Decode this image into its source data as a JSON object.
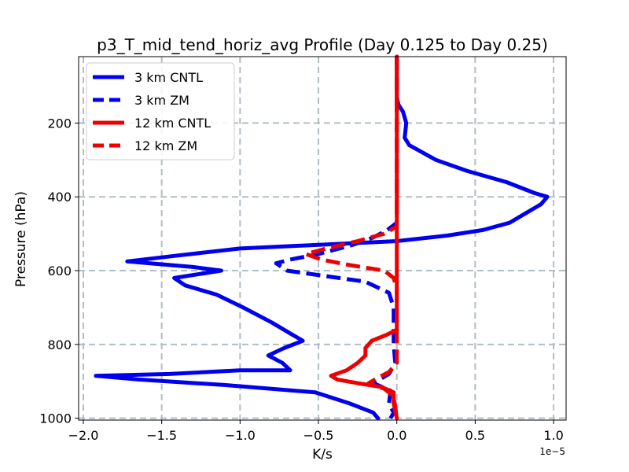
{
  "chart_data": {
    "type": "line",
    "title": "p3_T_mid_tend_horiz_avg Profile (Day 0.125 to Day 0.25)",
    "xlabel": "K/s",
    "ylabel": "Pressure (hPa)",
    "x_scale_label": "1e−5",
    "x_scale_factor": 1e-05,
    "xlim": [
      -2.03,
      1.08
    ],
    "ylim": [
      1005,
      20
    ],
    "y_inverted": true,
    "grid": true,
    "legend_position": "upper left",
    "x_ticks": [
      -2.0,
      -1.5,
      -1.0,
      -0.5,
      0.0,
      0.5,
      1.0
    ],
    "x_tick_labels": [
      "−2.0",
      "−1.5",
      "−1.0",
      "−0.5",
      "0.0",
      "0.5",
      "1.0"
    ],
    "y_ticks": [
      200,
      400,
      600,
      800,
      1000
    ],
    "y_tick_labels": [
      "200",
      "400",
      "600",
      "800",
      "1000"
    ],
    "series": [
      {
        "name": "3 km CNTL",
        "color": "#0000ee",
        "linestyle": "solid",
        "points": [
          [
            0.0,
            20
          ],
          [
            0.0,
            100
          ],
          [
            0.0,
            130
          ],
          [
            0.01,
            150
          ],
          [
            0.04,
            170
          ],
          [
            0.06,
            200
          ],
          [
            0.05,
            240
          ],
          [
            0.08,
            260
          ],
          [
            0.25,
            300
          ],
          [
            0.45,
            330
          ],
          [
            0.7,
            360
          ],
          [
            0.88,
            390
          ],
          [
            0.96,
            400
          ],
          [
            0.92,
            420
          ],
          [
            0.82,
            445
          ],
          [
            0.72,
            470
          ],
          [
            0.55,
            490
          ],
          [
            0.32,
            505
          ],
          [
            0.0,
            520
          ],
          [
            -0.5,
            530
          ],
          [
            -1.0,
            540
          ],
          [
            -1.42,
            560
          ],
          [
            -1.72,
            575
          ],
          [
            -1.3,
            590
          ],
          [
            -1.12,
            600
          ],
          [
            -1.42,
            620
          ],
          [
            -1.35,
            640
          ],
          [
            -1.15,
            665
          ],
          [
            -0.98,
            700
          ],
          [
            -0.8,
            740
          ],
          [
            -0.68,
            770
          ],
          [
            -0.6,
            790
          ],
          [
            -0.72,
            810
          ],
          [
            -0.82,
            830
          ],
          [
            -0.73,
            850
          ],
          [
            -0.68,
            870
          ],
          [
            -1.0,
            870
          ],
          [
            -1.45,
            880
          ],
          [
            -1.92,
            885
          ],
          [
            -1.65,
            895
          ],
          [
            -1.1,
            910
          ],
          [
            -0.52,
            930
          ],
          [
            -0.3,
            960
          ],
          [
            -0.15,
            985
          ],
          [
            -0.12,
            1000
          ]
        ]
      },
      {
        "name": "3 km ZM",
        "color": "#0000ee",
        "linestyle": "dashed",
        "points": [
          [
            0.0,
            20
          ],
          [
            0.0,
            470
          ],
          [
            -0.06,
            490
          ],
          [
            -0.15,
            510
          ],
          [
            -0.28,
            530
          ],
          [
            -0.5,
            555
          ],
          [
            -0.68,
            570
          ],
          [
            -0.77,
            580
          ],
          [
            -0.7,
            600
          ],
          [
            -0.45,
            615
          ],
          [
            -0.2,
            630
          ],
          [
            -0.05,
            660
          ],
          [
            -0.02,
            700
          ],
          [
            -0.02,
            800
          ],
          [
            -0.01,
            850
          ],
          [
            -0.05,
            880
          ],
          [
            -0.15,
            905
          ],
          [
            -0.04,
            925
          ],
          [
            -0.05,
            960
          ],
          [
            -0.02,
            985
          ],
          [
            -0.04,
            1000
          ]
        ]
      },
      {
        "name": "12 km CNTL",
        "color": "#ee0000",
        "linestyle": "solid",
        "points": [
          [
            0.0,
            20
          ],
          [
            0.0,
            760
          ],
          [
            -0.07,
            775
          ],
          [
            -0.16,
            790
          ],
          [
            -0.2,
            810
          ],
          [
            -0.2,
            830
          ],
          [
            -0.25,
            850
          ],
          [
            -0.32,
            870
          ],
          [
            -0.42,
            885
          ],
          [
            -0.38,
            895
          ],
          [
            -0.25,
            905
          ],
          [
            -0.1,
            915
          ],
          [
            -0.02,
            930
          ],
          [
            -0.02,
            960
          ],
          [
            0.0,
            1000
          ]
        ]
      },
      {
        "name": "12 km ZM",
        "color": "#ee0000",
        "linestyle": "dashed",
        "points": [
          [
            0.0,
            20
          ],
          [
            0.0,
            480
          ],
          [
            -0.08,
            500
          ],
          [
            -0.25,
            520
          ],
          [
            -0.45,
            540
          ],
          [
            -0.58,
            555
          ],
          [
            -0.48,
            570
          ],
          [
            -0.3,
            585
          ],
          [
            -0.08,
            600
          ],
          [
            -0.02,
            620
          ],
          [
            0.0,
            650
          ],
          [
            0.0,
            850
          ],
          [
            -0.05,
            875
          ],
          [
            -0.12,
            890
          ],
          [
            -0.18,
            905
          ],
          [
            -0.08,
            920
          ],
          [
            -0.02,
            940
          ],
          [
            0.0,
            1000
          ]
        ]
      }
    ]
  }
}
